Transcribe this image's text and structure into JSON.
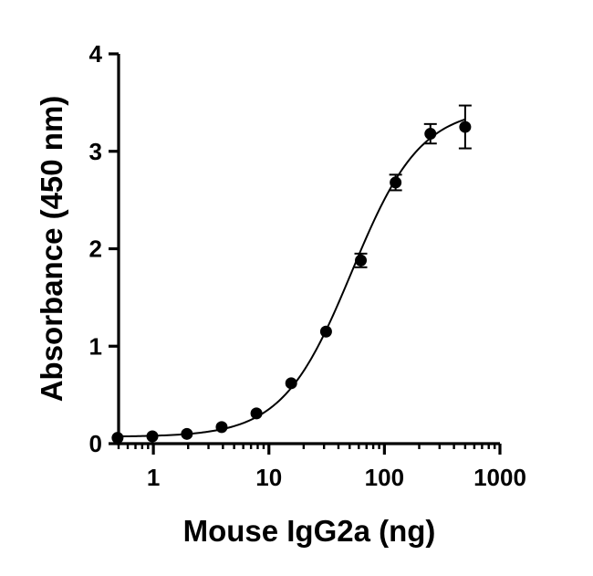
{
  "chart_data": {
    "type": "scatter",
    "x_scale": "log",
    "y_scale": "linear",
    "xlabel": "Mouse IgG2a (ng)",
    "ylabel": "Absorbance (450 nm)",
    "xlim": [
      0.5,
      1000
    ],
    "ylim": [
      0,
      4
    ],
    "x_ticks": [
      1,
      10,
      100,
      1000
    ],
    "x_tick_labels": [
      "1",
      "10",
      "100",
      "1000"
    ],
    "y_ticks": [
      0,
      1,
      2,
      3,
      4
    ],
    "y_tick_labels": [
      "0",
      "1",
      "2",
      "3",
      "4"
    ],
    "grid": false,
    "legend": "none",
    "fit": {
      "type": "four-parameter-logistic",
      "bottom": 0.07,
      "top": 3.45,
      "ec50": 52,
      "hill": 1.45,
      "x_range": [
        0.5,
        500
      ]
    },
    "series": [
      {
        "points": [
          {
            "x": 0.49,
            "y": 0.06,
            "err": 0.0
          },
          {
            "x": 0.98,
            "y": 0.075,
            "err": 0.0
          },
          {
            "x": 1.95,
            "y": 0.1,
            "err": 0.0
          },
          {
            "x": 3.9,
            "y": 0.17,
            "err": 0.0
          },
          {
            "x": 7.8,
            "y": 0.31,
            "err": 0.0
          },
          {
            "x": 15.6,
            "y": 0.62,
            "err": 0.0
          },
          {
            "x": 31.25,
            "y": 1.15,
            "err": 0.0
          },
          {
            "x": 62.5,
            "y": 1.88,
            "err": 0.07
          },
          {
            "x": 125,
            "y": 2.68,
            "err": 0.08
          },
          {
            "x": 250,
            "y": 3.18,
            "err": 0.1
          },
          {
            "x": 500,
            "y": 3.25,
            "err": 0.22
          }
        ]
      }
    ],
    "colors": {
      "marker": "#000000",
      "line": "#000000"
    }
  }
}
